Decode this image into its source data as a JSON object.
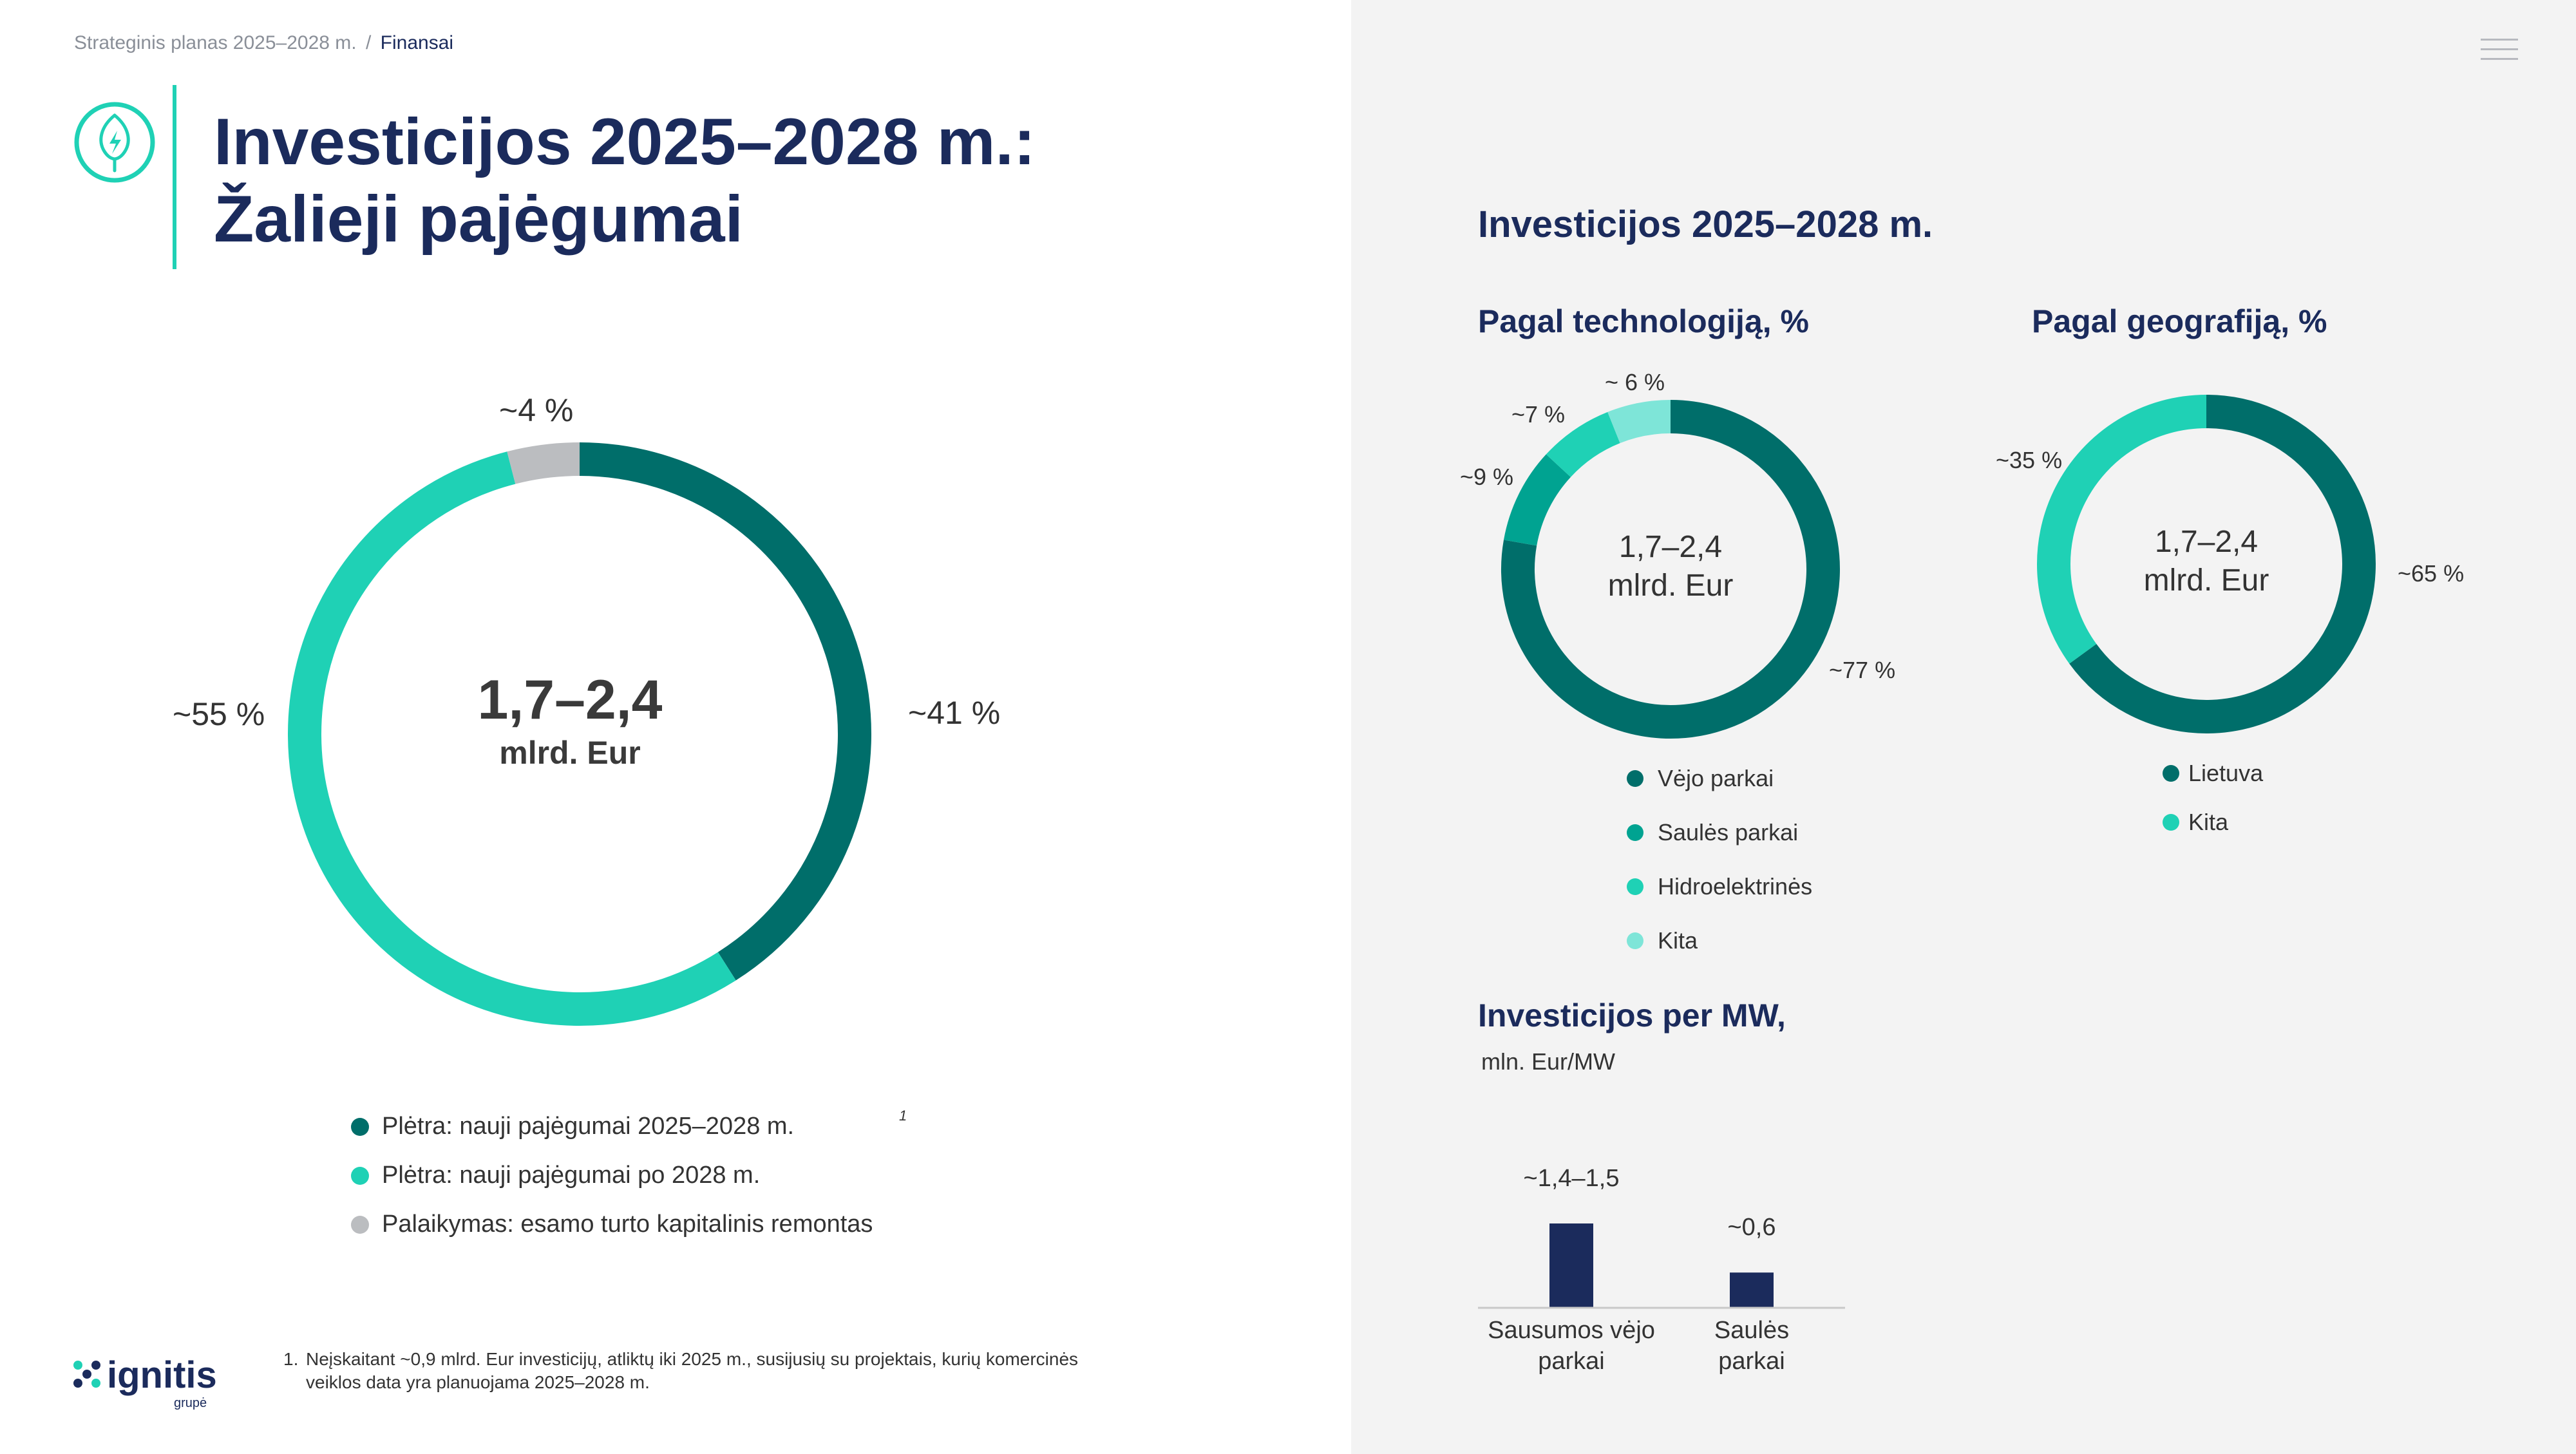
{
  "breadcrumb": {
    "parent": "Strateginis planas 2025–2028 m.",
    "separator": "/",
    "current": "Finansai"
  },
  "page_title": {
    "line1": "Investicijos 2025–2028 m.:",
    "line2": "Žalieji pajėgumai"
  },
  "logo": {
    "name": "ignitis",
    "sub": "grupė"
  },
  "footnote": {
    "marker": "1",
    "number": "1.",
    "line1": "Neįskaitant ~0,9 mlrd. Eur investicijų, atliktų iki 2025 m., susijusių su projektais, kurių komercinės",
    "line2": "veiklos data yra planuojama 2025–2028 m."
  },
  "colors": {
    "dark_teal": "#006e6a",
    "mid_teal": "#00a391",
    "bright_teal": "#1fd1b5",
    "light_teal": "#7ee5d8",
    "grey": "#bbbdc0",
    "navy": "#1b2b5c"
  },
  "icons": {
    "header": "leaf-lightning-icon",
    "menu": "hamburger-menu-icon",
    "logo": "ignitis-x-icon"
  },
  "chart_data": [
    {
      "type": "pie",
      "center_value": "1,7–2,4",
      "center_unit": "mlrd. Eur",
      "slices": [
        {
          "label": "Plėtra: nauji pajėgumai 2025–2028 m.",
          "value": 41,
          "display": "~41 %",
          "color": "#006e6a"
        },
        {
          "label": "Plėtra: nauji pajėgumai po 2028 m.",
          "value": 55,
          "display": "~55 %",
          "color": "#1fd1b5"
        },
        {
          "label": "Palaikymas: esamo turto kapitalinis remontas",
          "value": 4,
          "display": "~4 %",
          "color": "#bbbdc0"
        }
      ]
    },
    {
      "type": "pie",
      "section_title": "Investicijos 2025–2028 m.",
      "title": "Pagal technologiją, %",
      "center_value": "1,7–2,4",
      "center_unit": "mlrd. Eur",
      "slices": [
        {
          "label": "Vėjo parkai",
          "value": 77,
          "display": "~77 %",
          "color": "#006e6a"
        },
        {
          "label": "Saulės parkai",
          "value": 9,
          "display": "~9 %",
          "color": "#00a391"
        },
        {
          "label": "Hidroelektrinės",
          "value": 7,
          "display": "~7 %",
          "color": "#1fd1b5"
        },
        {
          "label": "Kita",
          "value": 6,
          "display": "~ 6 %",
          "color": "#7ee5d8"
        }
      ]
    },
    {
      "type": "pie",
      "title": "Pagal geografiją, %",
      "center_value": "1,7–2,4",
      "center_unit": "mlrd. Eur",
      "slices": [
        {
          "label": "Lietuva",
          "value": 65,
          "display": "~65 %",
          "color": "#006e6a"
        },
        {
          "label": "Kita",
          "value": 35,
          "display": "~35 %",
          "color": "#1fd1b5"
        }
      ]
    },
    {
      "type": "bar",
      "title": "Investicijos per MW,",
      "subtitle": "mln. Eur/MW",
      "categories": [
        "Sausumos vėjo parkai",
        "Saulės parkai"
      ],
      "category_lines": [
        [
          "Sausumos vėjo",
          "parkai"
        ],
        [
          "Saulės",
          "parkai"
        ]
      ],
      "values": [
        1.45,
        0.6
      ],
      "value_labels": [
        "~1,4–1,5",
        "~0,6"
      ],
      "color": "#1b2b5c"
    }
  ]
}
